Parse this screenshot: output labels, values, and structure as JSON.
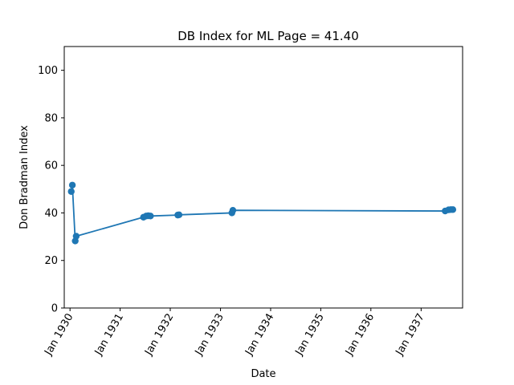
{
  "chart_data": {
    "type": "line",
    "title": "DB Index for ML Page = 41.40",
    "xlabel": "Date",
    "ylabel": "Don Bradman Index",
    "ylim": [
      0,
      110
    ],
    "xlim": [
      "1929-11-20",
      "1937-10-30"
    ],
    "yticks": [
      0,
      20,
      40,
      60,
      80,
      100
    ],
    "xticks": [
      {
        "date": "1930-01-01",
        "label": "Jan 1930"
      },
      {
        "date": "1931-01-01",
        "label": "Jan 1931"
      },
      {
        "date": "1932-01-01",
        "label": "Jan 1932"
      },
      {
        "date": "1933-01-01",
        "label": "Jan 1933"
      },
      {
        "date": "1934-01-01",
        "label": "Jan 1934"
      },
      {
        "date": "1935-01-01",
        "label": "Jan 1935"
      },
      {
        "date": "1936-01-01",
        "label": "Jan 1936"
      },
      {
        "date": "1937-01-01",
        "label": "Jan 1937"
      }
    ],
    "grid": false,
    "color": "#1f77b4",
    "series": [
      {
        "points": [
          {
            "x": "1930-01-10",
            "y": 49.0
          },
          {
            "x": "1930-01-18",
            "y": 51.7
          },
          {
            "x": "1930-02-08",
            "y": 28.2
          },
          {
            "x": "1930-02-15",
            "y": 30.2
          },
          {
            "x": "1931-06-20",
            "y": 38.2
          },
          {
            "x": "1931-07-10",
            "y": 38.7
          },
          {
            "x": "1931-07-25",
            "y": 38.8
          },
          {
            "x": "1931-08-10",
            "y": 38.7
          },
          {
            "x": "1932-02-25",
            "y": 39.1
          },
          {
            "x": "1932-03-05",
            "y": 39.2
          },
          {
            "x": "1933-03-25",
            "y": 40.0
          },
          {
            "x": "1933-04-01",
            "y": 41.1
          },
          {
            "x": "1937-06-25",
            "y": 40.8
          },
          {
            "x": "1937-07-20",
            "y": 41.3
          },
          {
            "x": "1937-08-05",
            "y": 41.4
          },
          {
            "x": "1937-08-20",
            "y": 41.4
          }
        ]
      }
    ]
  }
}
